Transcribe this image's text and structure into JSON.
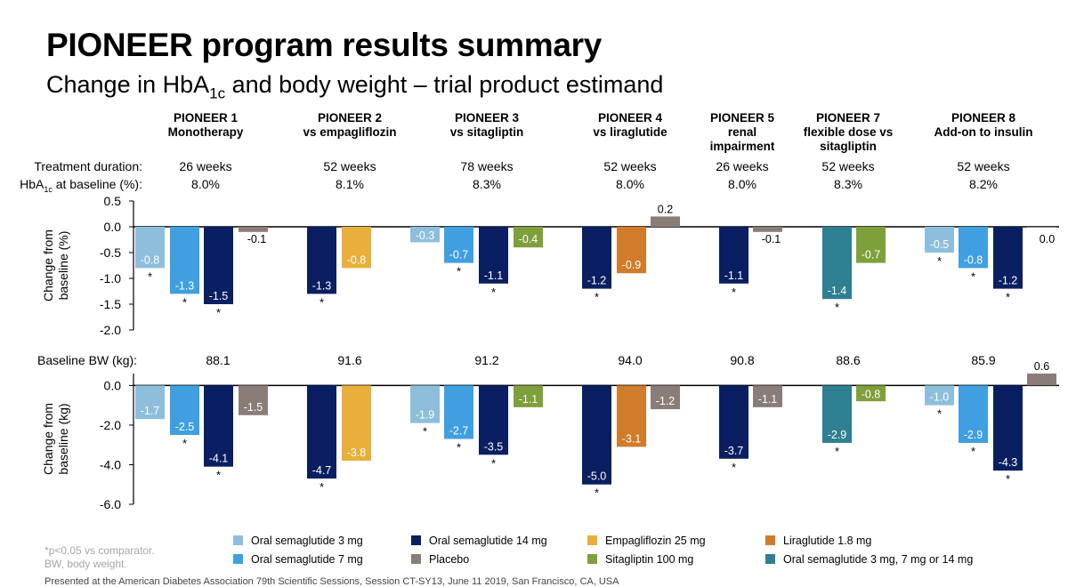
{
  "title": "PIONEER  program results summary",
  "subtitle_pre": "Change in HbA",
  "subtitle_sub": "1c",
  "subtitle_post": " and body weight – trial product estimand",
  "row_labels": {
    "duration": "Treatment duration:",
    "hba1c_pre": "HbA",
    "hba1c_sub": "1c",
    "hba1c_post": " at baseline (%):",
    "baseline_bw": "Baseline BW (kg):"
  },
  "trials": [
    {
      "name": "PIONEER  1",
      "desc": "Monotherapy",
      "duration": "26 weeks",
      "hba1c": "8.0%",
      "bw": "88.1"
    },
    {
      "name": "PIONEER  2",
      "desc": "vs empagliflozin",
      "duration": "52 weeks",
      "hba1c": "8.1%",
      "bw": "91.6"
    },
    {
      "name": "PIONEER  3",
      "desc": "vs sitagliptin",
      "duration": "78 weeks",
      "hba1c": "8.3%",
      "bw": "91.2"
    },
    {
      "name": "PIONEER  4",
      "desc": "vs liraglutide",
      "duration": "52 weeks",
      "hba1c": "8.0%",
      "bw": "94.0"
    },
    {
      "name": "PIONEER  5",
      "desc": "renal impairment",
      "duration": "26 weeks",
      "hba1c": "8.0%",
      "bw": "90.8"
    },
    {
      "name": "PIONEER  7",
      "desc": "flexible dose vs sitagliptin",
      "duration": "52 weeks",
      "hba1c": "8.3%",
      "bw": "88.6"
    },
    {
      "name": "PIONEER  8",
      "desc": "Add-on to insulin",
      "duration": "52 weeks",
      "hba1c": "8.2%",
      "bw": "85.9"
    }
  ],
  "colors": {
    "sema3": "#8dbfdc",
    "sema7": "#3f9fe0",
    "sema14": "#0a1f61",
    "placebo": "#8a7d78",
    "empa": "#e8b03a",
    "lira": "#d07c2a",
    "sita": "#7ea03a",
    "flex": "#2e7f91"
  },
  "legend": [
    {
      "label": "Oral semaglutide 3 mg",
      "color": "sema3"
    },
    {
      "label": "Oral semaglutide 14 mg",
      "color": "sema14"
    },
    {
      "label": "Empagliflozin 25 mg",
      "color": "empa"
    },
    {
      "label": "Liraglutide 1.8 mg",
      "color": "lira"
    },
    {
      "label": "Oral semaglutide 7 mg",
      "color": "sema7"
    },
    {
      "label": "Placebo",
      "color": "placebo"
    },
    {
      "label": "Sitagliptin 100 mg",
      "color": "sita"
    },
    {
      "label": "Oral semaglutide 3 mg, 7 mg or 14 mg",
      "color": "flex"
    }
  ],
  "footnote_1": "*p<0.05 vs comparator.",
  "footnote_2": "BW, body weight.",
  "footer_cut": "Presented at the American Diabetes Association 79th Scientific Sessions, Session CT-SY13, June 11 2019, San Francisco, CA, USA",
  "chart_data": [
    {
      "type": "bar",
      "ylabel": "Change from baseline (%)",
      "ylim": [
        -2.0,
        0.5
      ],
      "yticks": [
        "0.5",
        "0.0",
        "-0.5",
        "-1.0",
        "-1.5",
        "-2.0"
      ],
      "grid": false,
      "groups": [
        {
          "trial": "PIONEER 1",
          "bars": [
            {
              "series": "sema3",
              "value": -0.8,
              "label": "-0.8",
              "sig": true
            },
            {
              "series": "sema7",
              "value": -1.3,
              "label": "-1.3",
              "sig": true
            },
            {
              "series": "sema14",
              "value": -1.5,
              "label": "-1.5",
              "sig": true
            },
            {
              "series": "placebo",
              "value": -0.1,
              "label": "-0.1",
              "sig": false
            }
          ]
        },
        {
          "trial": "PIONEER 2",
          "bars": [
            {
              "series": "sema14",
              "value": -1.3,
              "label": "-1.3",
              "sig": true
            },
            {
              "series": "empa",
              "value": -0.8,
              "label": "-0.8",
              "sig": false
            }
          ]
        },
        {
          "trial": "PIONEER 3",
          "bars": [
            {
              "series": "sema3",
              "value": -0.3,
              "label": "-0.3",
              "sig": false
            },
            {
              "series": "sema7",
              "value": -0.7,
              "label": "-0.7",
              "sig": true
            },
            {
              "series": "sema14",
              "value": -1.1,
              "label": "-1.1",
              "sig": true
            },
            {
              "series": "sita",
              "value": -0.4,
              "label": "-0.4",
              "sig": false
            }
          ]
        },
        {
          "trial": "PIONEER 4",
          "bars": [
            {
              "series": "sema14",
              "value": -1.2,
              "label": "-1.2",
              "sig": true
            },
            {
              "series": "lira",
              "value": -0.9,
              "label": "-0.9",
              "sig": false
            },
            {
              "series": "placebo",
              "value": 0.2,
              "label": "0.2",
              "sig": false
            }
          ]
        },
        {
          "trial": "PIONEER 5",
          "bars": [
            {
              "series": "sema14",
              "value": -1.1,
              "label": "-1.1",
              "sig": true
            },
            {
              "series": "placebo",
              "value": -0.1,
              "label": "-0.1",
              "sig": false
            }
          ]
        },
        {
          "trial": "PIONEER 7",
          "bars": [
            {
              "series": "flex",
              "value": -1.4,
              "label": "-1.4",
              "sig": true
            },
            {
              "series": "sita",
              "value": -0.7,
              "label": "-0.7",
              "sig": false
            }
          ]
        },
        {
          "trial": "PIONEER 8",
          "bars": [
            {
              "series": "sema3",
              "value": -0.5,
              "label": "-0.5",
              "sig": true
            },
            {
              "series": "sema7",
              "value": -0.8,
              "label": "-0.8",
              "sig": true
            },
            {
              "series": "sema14",
              "value": -1.2,
              "label": "-1.2",
              "sig": true
            },
            {
              "series": "placebo",
              "value": 0.0,
              "label": "0.0",
              "sig": false
            }
          ]
        }
      ]
    },
    {
      "type": "bar",
      "ylabel": "Change from baseline (kg)",
      "ylim": [
        -6.0,
        0.6
      ],
      "yticks": [
        "0.0",
        "-2.0",
        "-4.0",
        "-6.0"
      ],
      "grid": false,
      "groups": [
        {
          "trial": "PIONEER 1",
          "bars": [
            {
              "series": "sema3",
              "value": -1.7,
              "label": "-1.7",
              "sig": false
            },
            {
              "series": "sema7",
              "value": -2.5,
              "label": "-2.5",
              "sig": true
            },
            {
              "series": "sema14",
              "value": -4.1,
              "label": "-4.1",
              "sig": true
            },
            {
              "series": "placebo",
              "value": -1.5,
              "label": "-1.5",
              "sig": false
            }
          ]
        },
        {
          "trial": "PIONEER 2",
          "bars": [
            {
              "series": "sema14",
              "value": -4.7,
              "label": "-4.7",
              "sig": true
            },
            {
              "series": "empa",
              "value": -3.8,
              "label": "-3.8",
              "sig": false
            }
          ]
        },
        {
          "trial": "PIONEER 3",
          "bars": [
            {
              "series": "sema3",
              "value": -1.9,
              "label": "-1.9",
              "sig": true
            },
            {
              "series": "sema7",
              "value": -2.7,
              "label": "-2.7",
              "sig": true
            },
            {
              "series": "sema14",
              "value": -3.5,
              "label": "-3.5",
              "sig": true
            },
            {
              "series": "sita",
              "value": -1.1,
              "label": "-1.1",
              "sig": false
            }
          ]
        },
        {
          "trial": "PIONEER 4",
          "bars": [
            {
              "series": "sema14",
              "value": -5.0,
              "label": "-5.0",
              "sig": true
            },
            {
              "series": "lira",
              "value": -3.1,
              "label": "-3.1",
              "sig": false
            },
            {
              "series": "placebo",
              "value": -1.2,
              "label": "-1.2",
              "sig": false
            }
          ]
        },
        {
          "trial": "PIONEER 5",
          "bars": [
            {
              "series": "sema14",
              "value": -3.7,
              "label": "-3.7",
              "sig": true
            },
            {
              "series": "placebo",
              "value": -1.1,
              "label": "-1.1",
              "sig": false
            }
          ]
        },
        {
          "trial": "PIONEER 7",
          "bars": [
            {
              "series": "flex",
              "value": -2.9,
              "label": "-2.9",
              "sig": true
            },
            {
              "series": "sita",
              "value": -0.8,
              "label": "-0.8",
              "sig": false
            }
          ]
        },
        {
          "trial": "PIONEER 8",
          "bars": [
            {
              "series": "sema3",
              "value": -1.0,
              "label": "-1.0",
              "sig": true
            },
            {
              "series": "sema7",
              "value": -2.9,
              "label": "-2.9",
              "sig": true
            },
            {
              "series": "sema14",
              "value": -4.3,
              "label": "-4.3",
              "sig": true
            },
            {
              "series": "placebo",
              "value": 0.6,
              "label": "0.6",
              "sig": false
            }
          ]
        }
      ]
    }
  ]
}
